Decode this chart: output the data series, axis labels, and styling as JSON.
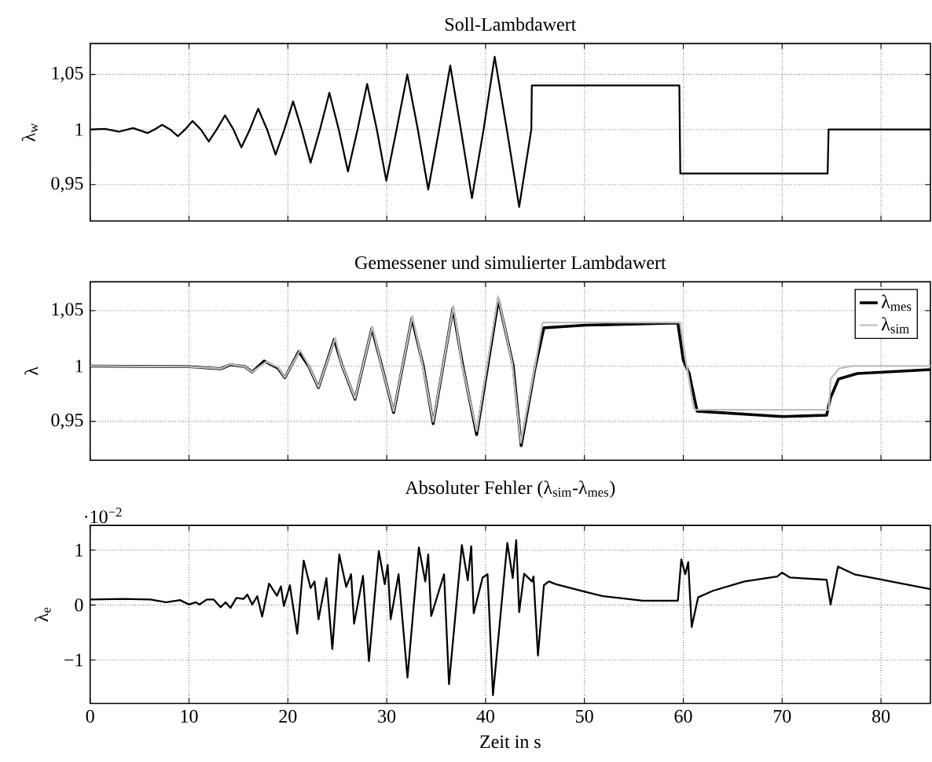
{
  "chart_data": [
    {
      "type": "line",
      "title": "Soll-Lambdawert",
      "ylabel": "λ$_{w}$",
      "xlim": [
        0,
        85
      ],
      "ylim": [
        0.917,
        1.078
      ],
      "xticks": [
        0,
        10,
        20,
        30,
        40,
        50,
        60,
        70,
        80
      ],
      "yticks": [
        {
          "value": 0.95,
          "label": "0,95"
        },
        1,
        {
          "value": 1.05,
          "label": "1,05"
        }
      ],
      "grid": true,
      "tick_labels": "y",
      "series": [
        {
          "color": "#000000",
          "x": [
            0,
            1.5,
            2.9,
            4.35,
            5.8,
            6.5,
            7.28,
            8.1,
            8.87,
            9.6,
            10.35,
            11.2,
            12.0,
            12.8,
            13.64,
            14.5,
            15.3,
            16.15,
            17.0,
            17.9,
            18.76,
            19.65,
            20.53,
            21.4,
            22.3,
            23.25,
            24.2,
            25.15,
            26.08,
            27.05,
            28.02,
            29.0,
            29.96,
            31.0,
            32.08,
            33.15,
            34.2,
            35.3,
            36.43,
            37.5,
            38.62,
            39.8,
            40.92,
            42.15,
            43.4,
            44.63,
            44.68,
            59.6,
            59.7,
            74.6,
            74.7,
            85
          ],
          "values": [
            1,
            1.0006,
            0.998,
            1.0013,
            0.9968,
            1,
            1.0042,
            1,
            0.9939,
            1,
            1.0077,
            1,
            0.9891,
            1,
            1.0128,
            1,
            0.9837,
            1,
            1.0189,
            1,
            0.9772,
            1,
            1.0256,
            1,
            0.9699,
            1,
            1.0333,
            1,
            0.9619,
            1,
            1.0413,
            1,
            0.9535,
            1,
            1.05,
            1,
            0.9455,
            1,
            1.058,
            1,
            0.9378,
            1,
            1.066,
            1,
            0.9298,
            1,
            1.04,
            1.04,
            0.96,
            0.96,
            1,
            1
          ]
        }
      ]
    },
    {
      "type": "line",
      "title": "Gemessener und simulierter Lambdawert",
      "ylabel": "λ",
      "xlim": [
        0,
        85
      ],
      "ylim": [
        0.915,
        1.076
      ],
      "xticks": [
        0,
        10,
        20,
        30,
        40,
        50,
        60,
        70,
        80
      ],
      "yticks": [
        {
          "value": 0.95,
          "label": "0,95"
        },
        1,
        {
          "value": 1.05,
          "label": "1,05"
        }
      ],
      "grid": true,
      "tick_labels": "y",
      "legend": "top right",
      "series": [
        {
          "name": "λ$_{mes}$",
          "color": "#000000",
          "x": [
            0,
            10,
            13.2,
            14.2,
            15.65,
            16.4,
            17.6,
            19.0,
            19.7,
            21.1,
            22.1,
            23.1,
            24.7,
            25.5,
            26.8,
            28.5,
            29.5,
            30.7,
            32.55,
            33.7,
            34.7,
            36.7,
            37.7,
            39.1,
            41.3,
            42.8,
            43.6,
            45.0,
            45.9,
            50.1,
            59.45,
            60.0,
            60.6,
            61.4,
            70.06,
            74.5,
            74.9,
            75.7,
            77.6,
            85
          ],
          "values": [
            1.0,
            0.9994,
            0.9975,
            1.0012,
            0.9994,
            0.9946,
            1.0045,
            0.998,
            0.9895,
            1.013,
            1.0,
            0.9805,
            1.024,
            1.0,
            0.97,
            1.034,
            1.0,
            0.958,
            1.043,
            1.0,
            0.948,
            1.052,
            1.0,
            0.938,
            1.06,
            1.0,
            0.928,
            0.998,
            1.0345,
            1.0369,
            1.0388,
            1.0053,
            0.9932,
            0.9592,
            0.9544,
            0.9556,
            0.9714,
            0.9883,
            0.9932,
            0.9968
          ]
        },
        {
          "name": "λ$_{sim}$",
          "color": "#bfbfbf",
          "x": [
            0,
            10,
            13.2,
            14.2,
            15.65,
            16.4,
            17.8,
            19.0,
            19.7,
            21.24,
            22.0,
            23.1,
            24.8,
            25.4,
            26.8,
            28.55,
            29.4,
            30.7,
            32.6,
            33.6,
            34.7,
            36.75,
            37.6,
            39.1,
            41.27,
            42.7,
            43.57,
            45.0,
            45.77,
            59.7,
            60.25,
            61.05,
            61.3,
            74.73,
            74.9,
            75.8,
            77.1,
            85
          ],
          "values": [
            1.0,
            0.9994,
            0.9975,
            1.0016,
            0.9994,
            0.9946,
            1.0038,
            0.999,
            0.9898,
            1.0143,
            1.0025,
            0.9809,
            1.0255,
            1.0025,
            0.9707,
            1.0357,
            1.0025,
            0.9592,
            1.0452,
            1.0025,
            0.9497,
            1.0541,
            1.0025,
            0.9411,
            1.063,
            1.0025,
            0.9306,
            1.0,
            1.0393,
            1.0393,
            1.0053,
            0.9617,
            0.9604,
            0.9604,
            0.9883,
            0.998,
            1.0,
            1.0
          ]
        }
      ]
    },
    {
      "type": "line",
      "title": "Absoluter Fehler (λ$_{sim}$-λ$_{mes}$)",
      "ylabel": "λ$_{e}$",
      "xlabel": "Zeit in s",
      "xlim": [
        0,
        85
      ],
      "ylim": [
        -1.79,
        1.45
      ],
      "xticks": [
        0,
        10,
        20,
        30,
        40,
        50,
        60,
        70,
        80
      ],
      "yticks": [
        {
          "value": -1,
          "label": "−1"
        },
        0,
        1
      ],
      "grid": true,
      "annotations": [
        "·10$^{−2}$"
      ],
      "series": [
        {
          "color": "#000000",
          "x": [
            0,
            3.3,
            6.1,
            7.7,
            9.1,
            10,
            10.7,
            11.06,
            11.8,
            12.5,
            13.2,
            13.7,
            14.2,
            14.8,
            15.5,
            15.9,
            16.4,
            16.9,
            17.4,
            18.1,
            18.9,
            19.3,
            19.6,
            20.2,
            20.95,
            21.6,
            22.3,
            22.7,
            23.1,
            23.9,
            24.5,
            25.2,
            25.9,
            26.4,
            26.7,
            27.6,
            28.2,
            29.2,
            29.8,
            30.1,
            30.4,
            31.2,
            32.1,
            33.25,
            33.9,
            34.2,
            34.5,
            35.8,
            36.3,
            37.6,
            38.2,
            38.55,
            38.8,
            39.7,
            40.2,
            40.75,
            42.2,
            42.75,
            43.1,
            43.4,
            43.9,
            44.7,
            44.85,
            45.3,
            45.9,
            46.4,
            47.1,
            50.1,
            51.9,
            55.9,
            59.45,
            59.8,
            60.2,
            60.5,
            60.85,
            61.5,
            63.0,
            66.2,
            69.5,
            70.0,
            70.8,
            74.5,
            74.9,
            75.65,
            77.3,
            85
          ],
          "values": [
            0.1,
            0.11,
            0.1,
            0.05,
            0.09,
            0.01,
            0.05,
            0.01,
            0.1,
            0.1,
            -0.04,
            0.05,
            -0.05,
            0.13,
            0.11,
            0.19,
            0.01,
            0.16,
            -0.21,
            0.39,
            0.17,
            0.34,
            -0.02,
            0.36,
            -0.52,
            0.81,
            0.31,
            0.43,
            -0.26,
            0.49,
            -0.8,
            0.92,
            0.33,
            0.56,
            -0.34,
            0.53,
            -1.02,
            0.98,
            0.38,
            0.73,
            -0.26,
            0.56,
            -1.32,
            1.05,
            0.43,
            0.92,
            -0.2,
            0.56,
            -1.44,
            1.09,
            0.45,
            1.07,
            -0.15,
            0.5,
            0.56,
            -1.64,
            1.13,
            0.49,
            1.18,
            -0.13,
            0.57,
            0.43,
            0.52,
            -0.92,
            0.36,
            0.43,
            0.38,
            0.24,
            0.16,
            0.08,
            0.08,
            0.83,
            0.56,
            0.78,
            -0.4,
            0.14,
            0.26,
            0.43,
            0.52,
            0.59,
            0.5,
            0.46,
            0.01,
            0.7,
            0.56,
            0.29
          ]
        }
      ]
    }
  ]
}
